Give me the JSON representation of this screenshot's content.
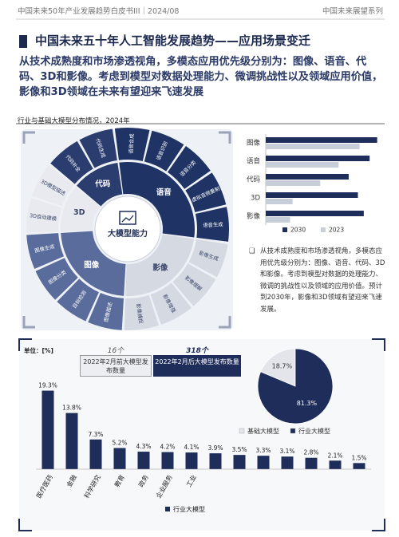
{
  "header": {
    "left": "中国未来50年产业发展趋势白皮书III｜2024/08",
    "right": "中国未来展望系列"
  },
  "title": "中国未来五十年人工智能发展趋势——应用场景变迁",
  "summary": "从技术成熟度和市场渗透视角，多模态应用优先级分别为：图像、语音、代码、3D和影像。考虑到模型对数据处理能力、微调挑战性以及领域应用价值，影像和3D领域在未来有望迎来飞速发展",
  "section": "行业与基础大模型分布情况，2024年",
  "wheel": {
    "center": "大模型能力",
    "groups": [
      {
        "name": "语音",
        "color": "#1f3464",
        "items": [
          "语音合成",
          "语音识别",
          "语音分类",
          "虚拟音频重制",
          "语音生成"
        ]
      },
      {
        "name": "影像",
        "color": "#d5d9e2",
        "items": [
          "影像生成",
          "影像理解",
          "影像增强",
          "影像捕捉"
        ]
      },
      {
        "name": "图像",
        "color": "#5a6c9c",
        "items": [
          "图像描述",
          "目标检测",
          "图像分类",
          "图像生成"
        ]
      },
      {
        "name": "3D",
        "color": "#e8eaef",
        "items": [
          "3D自动建模",
          "3D模型描述"
        ]
      },
      {
        "name": "代码",
        "color": "#2a3d6e",
        "items": [
          "代码补全",
          "代码生成"
        ]
      }
    ]
  },
  "bullet": "从技术成熟度和市场渗透视角，多模态应用优先级分别为：图像、语音、代码、3D和影像。考虑到模型对数据的处理能力、微调的挑战性以及领域的应用价值。预计到2030年，影像和3D领域有望迎来飞速发展。",
  "release_counts": [
    {
      "count": "16个",
      "label": "2022年2月前大模型发布数量"
    },
    {
      "count": "318个",
      "label": "2022年2月后大模型发布数量"
    }
  ],
  "chart_data": [
    {
      "type": "bar",
      "orientation": "horizontal",
      "categories": [
        "图像",
        "语音",
        "代码",
        "3D",
        "影像"
      ],
      "series": [
        {
          "name": "2030",
          "color": "#1f2d5a",
          "values": [
            133,
            124,
            99,
            110,
            117
          ]
        },
        {
          "name": "2023",
          "color": "#c8cdda",
          "values": [
            112,
            87,
            65,
            32,
            29
          ]
        }
      ],
      "xlim": [
        0,
        140
      ]
    },
    {
      "type": "pie",
      "categories": [
        "基础大模型",
        "行业大模型"
      ],
      "values": [
        18.7,
        81.3
      ],
      "value_labels": [
        "18.7%",
        "81.3%"
      ],
      "colors": [
        "#e3e5ea",
        "#1f2d5a"
      ]
    },
    {
      "type": "bar",
      "unit_label": "单位：[%]",
      "categories": [
        "医疗医药",
        "金融",
        "科学研究",
        "教育",
        "政务",
        "企业服务",
        "工业",
        null,
        null,
        null,
        null,
        null,
        null,
        null
      ],
      "series": [
        {
          "name": "行业大模型",
          "color": "#1f2d5a",
          "values": [
            19.3,
            13.8,
            7.3,
            5.2,
            4.3,
            4.2,
            4.1,
            3.9,
            3.5,
            3.3,
            3.1,
            2.8,
            2.1,
            1.5
          ]
        }
      ],
      "value_labels": [
        "19.3%",
        "13.8%",
        "7.3%",
        "5.2%",
        "4.3%",
        "4.2%",
        "4.1%",
        "3.9%",
        "3.5%",
        "3.3%",
        "3.1%",
        "2.8%",
        "2.1%",
        "1.5%"
      ],
      "ylim": [
        0,
        20
      ]
    }
  ]
}
